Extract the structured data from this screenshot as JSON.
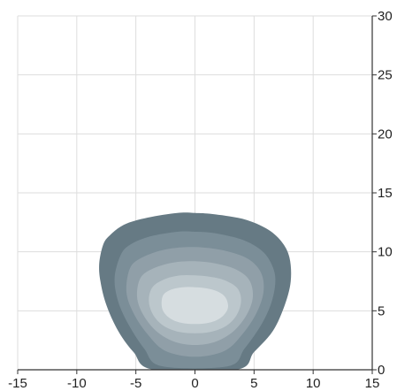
{
  "chart_data": {
    "type": "area",
    "title": "",
    "xlabel": "",
    "ylabel": "",
    "xlim": [
      -15,
      15
    ],
    "ylim": [
      0,
      30
    ],
    "x_ticks": [
      -15,
      -10,
      -5,
      0,
      5,
      10,
      15
    ],
    "y_ticks": [
      0,
      5,
      10,
      15,
      20,
      25,
      30
    ],
    "y_axis_side": "right",
    "grid": true,
    "levels": [
      {
        "color": "#667a84",
        "outline": [
          [
            -7.8,
            10.5
          ],
          [
            -7.3,
            11.3
          ],
          [
            -6.0,
            12.3
          ],
          [
            -4.0,
            12.9
          ],
          [
            -1.5,
            13.3
          ],
          [
            0,
            13.3
          ],
          [
            1.5,
            13.2
          ],
          [
            4.0,
            12.8
          ],
          [
            6.0,
            12.0
          ],
          [
            7.3,
            10.9
          ],
          [
            8.0,
            9.5
          ],
          [
            8.1,
            7.5
          ],
          [
            7.6,
            5.5
          ],
          [
            6.6,
            3.3
          ],
          [
            5.0,
            1.5
          ],
          [
            3.5,
            0
          ],
          [
            -3.5,
            0
          ],
          [
            -5.2,
            1.5
          ],
          [
            -6.5,
            3.3
          ],
          [
            -7.5,
            5.5
          ],
          [
            -8.0,
            7.5
          ],
          [
            -8.1,
            9.0
          ]
        ]
      },
      {
        "color": "#7b8e98",
        "outline": [
          [
            -6.3,
            9.7
          ],
          [
            -5.5,
            10.6
          ],
          [
            -3.8,
            11.3
          ],
          [
            -1.5,
            11.7
          ],
          [
            0,
            11.7
          ],
          [
            1.5,
            11.6
          ],
          [
            3.8,
            11.1
          ],
          [
            5.4,
            10.3
          ],
          [
            6.3,
            9.3
          ],
          [
            6.8,
            7.8
          ],
          [
            6.5,
            5.8
          ],
          [
            5.6,
            3.8
          ],
          [
            4.2,
            1.8
          ],
          [
            2.8,
            0.3
          ],
          [
            -2.8,
            0.3
          ],
          [
            -4.3,
            1.8
          ],
          [
            -5.6,
            3.8
          ],
          [
            -6.5,
            5.8
          ],
          [
            -6.8,
            7.8
          ]
        ]
      },
      {
        "color": "#909fa8",
        "outline": [
          [
            -5.5,
            8.6
          ],
          [
            -4.5,
            9.5
          ],
          [
            -2.5,
            10.2
          ],
          [
            0,
            10.4
          ],
          [
            2.5,
            10.1
          ],
          [
            4.5,
            9.4
          ],
          [
            5.6,
            8.2
          ],
          [
            5.8,
            6.6
          ],
          [
            5.2,
            4.8
          ],
          [
            4.0,
            3.0
          ],
          [
            2.5,
            1.6
          ],
          [
            0,
            1.1
          ],
          [
            -2.5,
            1.6
          ],
          [
            -4.0,
            3.0
          ],
          [
            -5.2,
            4.8
          ],
          [
            -5.8,
            6.6
          ]
        ]
      },
      {
        "color": "#a6b3ba",
        "outline": [
          [
            -4.6,
            7.8
          ],
          [
            -3.5,
            8.6
          ],
          [
            -1.8,
            9.1
          ],
          [
            0,
            9.2
          ],
          [
            1.8,
            9.0
          ],
          [
            3.5,
            8.5
          ],
          [
            4.6,
            7.6
          ],
          [
            4.9,
            6.2
          ],
          [
            4.4,
            4.7
          ],
          [
            3.3,
            3.3
          ],
          [
            1.8,
            2.4
          ],
          [
            0,
            2.1
          ],
          [
            -1.8,
            2.4
          ],
          [
            -3.3,
            3.3
          ],
          [
            -4.4,
            4.7
          ],
          [
            -4.9,
            6.2
          ]
        ]
      },
      {
        "color": "#bcc7cc",
        "outline": [
          [
            -3.6,
            7.0
          ],
          [
            -2.5,
            7.7
          ],
          [
            -1.2,
            8.0
          ],
          [
            0,
            8.0
          ],
          [
            1.2,
            7.9
          ],
          [
            2.5,
            7.6
          ],
          [
            3.6,
            6.9
          ],
          [
            3.9,
            5.8
          ],
          [
            3.5,
            4.6
          ],
          [
            2.6,
            3.7
          ],
          [
            1.3,
            3.2
          ],
          [
            0,
            3.1
          ],
          [
            -1.3,
            3.2
          ],
          [
            -2.6,
            3.7
          ],
          [
            -3.5,
            4.6
          ],
          [
            -3.9,
            5.8
          ]
        ]
      },
      {
        "color": "#d6dde0",
        "outline": [
          [
            -2.7,
            6.3
          ],
          [
            -2.0,
            6.8
          ],
          [
            -1.0,
            7.0
          ],
          [
            0,
            7.0
          ],
          [
            1.0,
            6.9
          ],
          [
            2.0,
            6.6
          ],
          [
            2.6,
            6.1
          ],
          [
            2.8,
            5.3
          ],
          [
            2.4,
            4.6
          ],
          [
            1.6,
            4.1
          ],
          [
            0.6,
            3.9
          ],
          [
            -0.6,
            3.9
          ],
          [
            -1.6,
            4.1
          ],
          [
            -2.4,
            4.6
          ],
          [
            -2.8,
            5.3
          ]
        ]
      }
    ]
  }
}
